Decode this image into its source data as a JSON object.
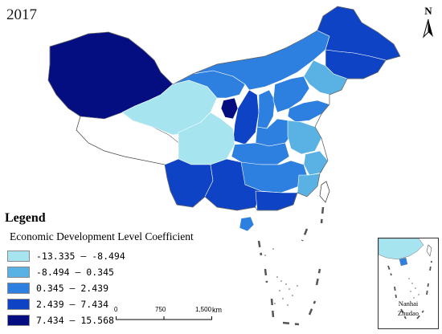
{
  "year": "2017",
  "north_label": "N",
  "legend": {
    "title": "Legend",
    "subtitle": "Economic Development Level Coefficient",
    "classes": [
      {
        "label": "-13.335 — -8.494",
        "color": "#a6e4f0"
      },
      {
        "label": "-8.494 — 0.345",
        "color": "#5ab2e4"
      },
      {
        "label": "0.345 — 2.439",
        "color": "#2d7fe0"
      },
      {
        "label": "2.439 — 7.434",
        "color": "#0d43c4"
      },
      {
        "label": "7.434 — 15.568",
        "color": "#040e80"
      }
    ]
  },
  "scale_bar": {
    "ticks": [
      "0",
      "750",
      "1,500"
    ],
    "unit": "km"
  },
  "inset": {
    "label_line1": "Nanhai",
    "label_line2": "Zhudao"
  },
  "icons": {
    "north_arrow": "north-arrow-icon"
  }
}
